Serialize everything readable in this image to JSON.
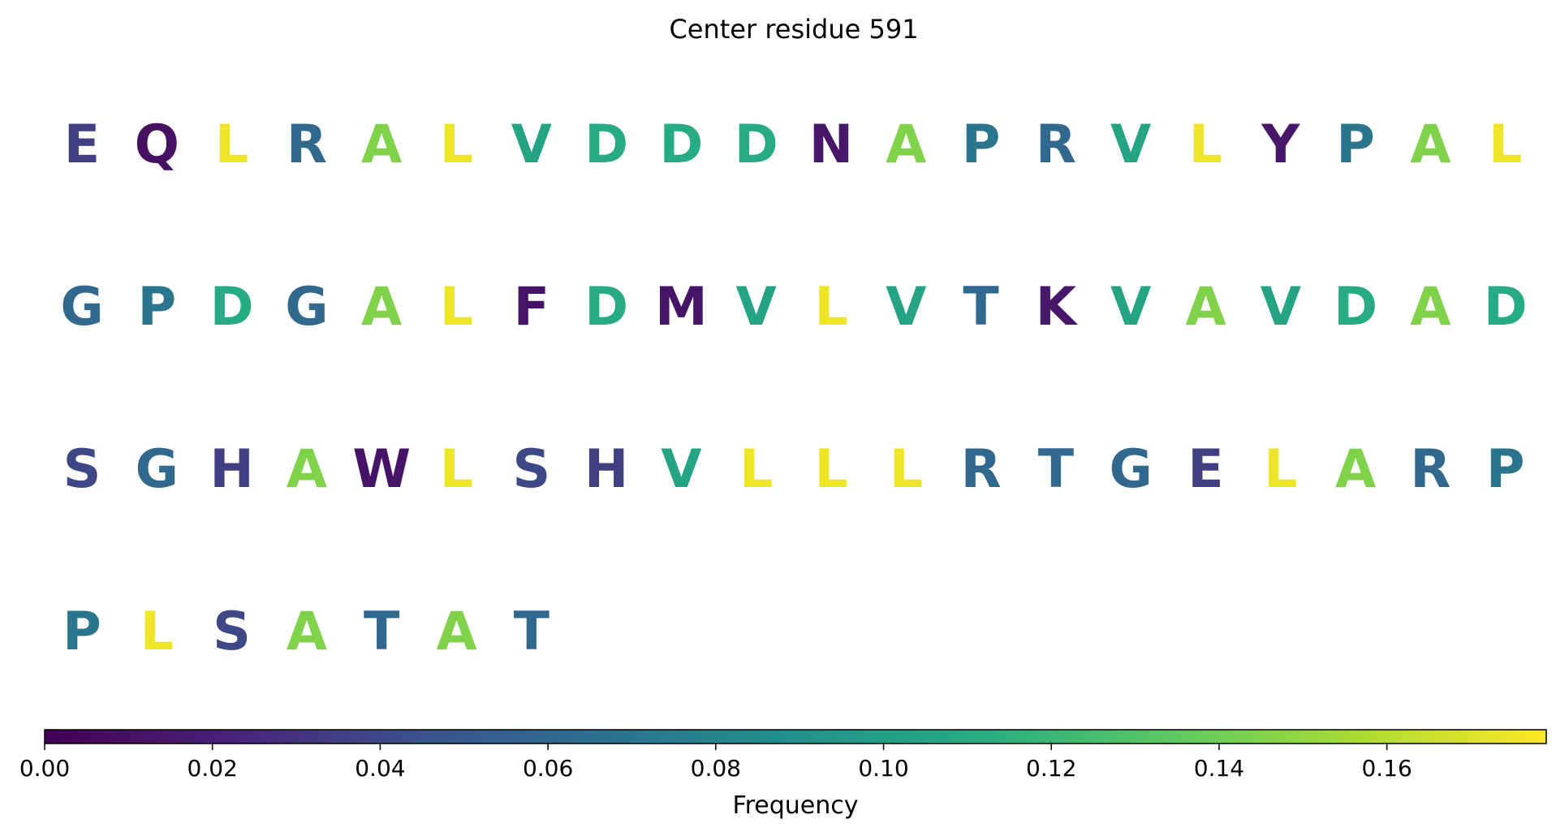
{
  "chart_data": {
    "type": "heatmap",
    "title": "Center residue 591",
    "colormap": "viridis",
    "residues": [
      {
        "letter": "E",
        "frequency": 0.035
      },
      {
        "letter": "Q",
        "frequency": 0.01
      },
      {
        "letter": "L",
        "frequency": 0.175
      },
      {
        "letter": "R",
        "frequency": 0.06
      },
      {
        "letter": "A",
        "frequency": 0.145
      },
      {
        "letter": "L",
        "frequency": 0.175
      },
      {
        "letter": "V",
        "frequency": 0.105
      },
      {
        "letter": "D",
        "frequency": 0.11
      },
      {
        "letter": "D",
        "frequency": 0.11
      },
      {
        "letter": "D",
        "frequency": 0.11
      },
      {
        "letter": "N",
        "frequency": 0.015
      },
      {
        "letter": "A",
        "frequency": 0.145
      },
      {
        "letter": "P",
        "frequency": 0.07
      },
      {
        "letter": "R",
        "frequency": 0.06
      },
      {
        "letter": "V",
        "frequency": 0.105
      },
      {
        "letter": "L",
        "frequency": 0.175
      },
      {
        "letter": "Y",
        "frequency": 0.015
      },
      {
        "letter": "P",
        "frequency": 0.07
      },
      {
        "letter": "A",
        "frequency": 0.145
      },
      {
        "letter": "L",
        "frequency": 0.175
      },
      {
        "letter": "G",
        "frequency": 0.06
      },
      {
        "letter": "P",
        "frequency": 0.07
      },
      {
        "letter": "D",
        "frequency": 0.11
      },
      {
        "letter": "G",
        "frequency": 0.06
      },
      {
        "letter": "A",
        "frequency": 0.145
      },
      {
        "letter": "L",
        "frequency": 0.175
      },
      {
        "letter": "F",
        "frequency": 0.012
      },
      {
        "letter": "D",
        "frequency": 0.11
      },
      {
        "letter": "M",
        "frequency": 0.012
      },
      {
        "letter": "V",
        "frequency": 0.105
      },
      {
        "letter": "L",
        "frequency": 0.175
      },
      {
        "letter": "V",
        "frequency": 0.105
      },
      {
        "letter": "T",
        "frequency": 0.06
      },
      {
        "letter": "K",
        "frequency": 0.015
      },
      {
        "letter": "V",
        "frequency": 0.105
      },
      {
        "letter": "A",
        "frequency": 0.145
      },
      {
        "letter": "V",
        "frequency": 0.105
      },
      {
        "letter": "D",
        "frequency": 0.11
      },
      {
        "letter": "A",
        "frequency": 0.145
      },
      {
        "letter": "D",
        "frequency": 0.11
      },
      {
        "letter": "S",
        "frequency": 0.04
      },
      {
        "letter": "G",
        "frequency": 0.06
      },
      {
        "letter": "H",
        "frequency": 0.035
      },
      {
        "letter": "A",
        "frequency": 0.145
      },
      {
        "letter": "W",
        "frequency": 0.012
      },
      {
        "letter": "L",
        "frequency": 0.175
      },
      {
        "letter": "S",
        "frequency": 0.04
      },
      {
        "letter": "H",
        "frequency": 0.035
      },
      {
        "letter": "V",
        "frequency": 0.105
      },
      {
        "letter": "L",
        "frequency": 0.175
      },
      {
        "letter": "L",
        "frequency": 0.175
      },
      {
        "letter": "L",
        "frequency": 0.175
      },
      {
        "letter": "R",
        "frequency": 0.06
      },
      {
        "letter": "T",
        "frequency": 0.06
      },
      {
        "letter": "G",
        "frequency": 0.06
      },
      {
        "letter": "E",
        "frequency": 0.035
      },
      {
        "letter": "L",
        "frequency": 0.175
      },
      {
        "letter": "A",
        "frequency": 0.145
      },
      {
        "letter": "R",
        "frequency": 0.06
      },
      {
        "letter": "P",
        "frequency": 0.07
      },
      {
        "letter": "P",
        "frequency": 0.07
      },
      {
        "letter": "L",
        "frequency": 0.175
      },
      {
        "letter": "S",
        "frequency": 0.04
      },
      {
        "letter": "A",
        "frequency": 0.145
      },
      {
        "letter": "T",
        "frequency": 0.06
      },
      {
        "letter": "A",
        "frequency": 0.145
      },
      {
        "letter": "T",
        "frequency": 0.06
      }
    ],
    "colorbar": {
      "label": "Frequency",
      "range": [
        0.0,
        0.179
      ],
      "ticks": [
        0.0,
        0.02,
        0.04,
        0.06,
        0.08,
        0.1,
        0.12,
        0.14,
        0.16
      ],
      "tick_labels": [
        "0.00",
        "0.02",
        "0.04",
        "0.06",
        "0.08",
        "0.10",
        "0.12",
        "0.14",
        "0.16"
      ],
      "orientation": "horizontal",
      "placement": "bottom"
    }
  }
}
